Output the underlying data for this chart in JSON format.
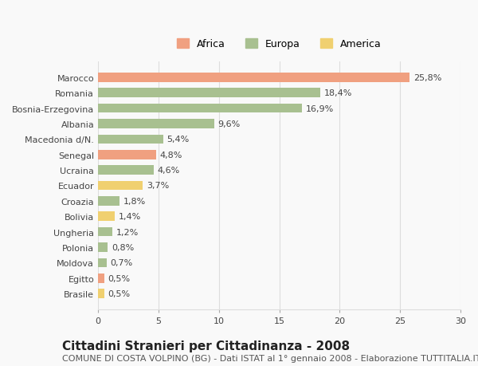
{
  "categories": [
    "Brasile",
    "Egitto",
    "Moldova",
    "Polonia",
    "Ungheria",
    "Bolivia",
    "Croazia",
    "Ecuador",
    "Ucraina",
    "Senegal",
    "Macedonia d/N.",
    "Albania",
    "Bosnia-Erzegovina",
    "Romania",
    "Marocco"
  ],
  "values": [
    0.5,
    0.5,
    0.7,
    0.8,
    1.2,
    1.4,
    1.8,
    3.7,
    4.6,
    4.8,
    5.4,
    9.6,
    16.9,
    18.4,
    25.8
  ],
  "labels": [
    "0,5%",
    "0,5%",
    "0,7%",
    "0,8%",
    "1,2%",
    "1,4%",
    "1,8%",
    "3,7%",
    "4,6%",
    "4,8%",
    "5,4%",
    "9,6%",
    "16,9%",
    "18,4%",
    "25,8%"
  ],
  "continents": [
    "America",
    "Africa",
    "Europa",
    "Europa",
    "Europa",
    "America",
    "Europa",
    "America",
    "Europa",
    "Africa",
    "Europa",
    "Europa",
    "Europa",
    "Europa",
    "Africa"
  ],
  "colors": {
    "Africa": "#F0A080",
    "Europa": "#A8C090",
    "America": "#F0D070"
  },
  "legend_order": [
    "Africa",
    "Europa",
    "America"
  ],
  "title": "Cittadini Stranieri per Cittadinanza - 2008",
  "subtitle": "COMUNE DI COSTA VOLPINO (BG) - Dati ISTAT al 1° gennaio 2008 - Elaborazione TUTTITALIA.IT",
  "xlim": [
    0,
    30
  ],
  "xticks": [
    0,
    5,
    10,
    15,
    20,
    25,
    30
  ],
  "background_color": "#f9f9f9",
  "grid_color": "#dddddd",
  "bar_height": 0.6,
  "title_fontsize": 11,
  "subtitle_fontsize": 8,
  "label_fontsize": 8,
  "tick_fontsize": 8,
  "legend_fontsize": 9
}
